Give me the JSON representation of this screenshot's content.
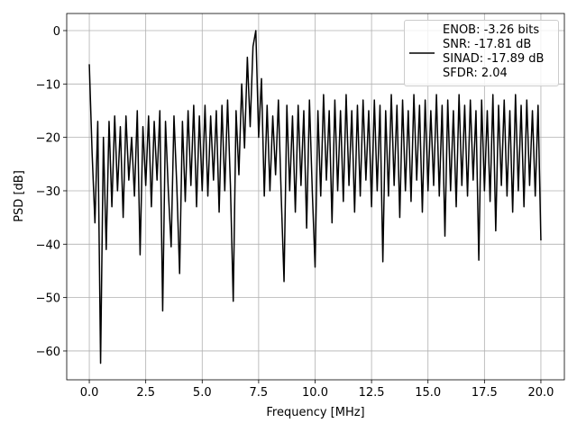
{
  "chart_data": {
    "type": "line",
    "xlabel": "Frequency [MHz]",
    "ylabel": "PSD [dB]",
    "xlim": [
      -1.0,
      21.04
    ],
    "ylim": [
      -65.4,
      3.2
    ],
    "xticks": [
      {
        "value": 0,
        "label": "0.0"
      },
      {
        "value": 2.5,
        "label": "2.5"
      },
      {
        "value": 5,
        "label": "5.0"
      },
      {
        "value": 7.5,
        "label": "7.5"
      },
      {
        "value": 10,
        "label": "10.0"
      },
      {
        "value": 12.5,
        "label": "12.5"
      },
      {
        "value": 15,
        "label": "15.0"
      },
      {
        "value": 17.5,
        "label": "17.5"
      },
      {
        "value": 20,
        "label": "20.0"
      }
    ],
    "yticks": [
      {
        "value": -60,
        "label": "−60"
      },
      {
        "value": -50,
        "label": "−50"
      },
      {
        "value": -40,
        "label": "−40"
      },
      {
        "value": -30,
        "label": "−30"
      },
      {
        "value": -20,
        "label": "−20"
      },
      {
        "value": -10,
        "label": "−10"
      },
      0
    ],
    "grid": true,
    "legend": "upper right",
    "x": [
      0,
      0.125,
      0.25,
      0.375,
      0.5,
      0.625,
      0.75,
      0.875,
      1,
      1.125,
      1.25,
      1.375,
      1.5,
      1.625,
      1.75,
      1.875,
      2,
      2.125,
      2.25,
      2.375,
      2.5,
      2.625,
      2.75,
      2.875,
      3,
      3.125,
      3.25,
      3.375,
      3.5,
      3.625,
      3.75,
      3.875,
      4,
      4.125,
      4.25,
      4.375,
      4.5,
      4.625,
      4.75,
      4.875,
      5,
      5.125,
      5.25,
      5.375,
      5.5,
      5.625,
      5.75,
      5.875,
      6,
      6.125,
      6.25,
      6.375,
      6.5,
      6.625,
      6.75,
      6.875,
      7,
      7.125,
      7.25,
      7.375,
      7.5,
      7.625,
      7.75,
      7.875,
      8,
      8.125,
      8.25,
      8.375,
      8.5,
      8.625,
      8.75,
      8.875,
      9,
      9.125,
      9.25,
      9.375,
      9.5,
      9.625,
      9.75,
      9.875,
      10,
      10.125,
      10.25,
      10.375,
      10.5,
      10.625,
      10.75,
      10.875,
      11,
      11.125,
      11.25,
      11.375,
      11.5,
      11.625,
      11.75,
      11.875,
      12,
      12.125,
      12.25,
      12.375,
      12.5,
      12.625,
      12.75,
      12.875,
      13,
      13.125,
      13.25,
      13.375,
      13.5,
      13.625,
      13.75,
      13.875,
      14,
      14.125,
      14.25,
      14.375,
      14.5,
      14.625,
      14.75,
      14.875,
      15,
      15.125,
      15.25,
      15.375,
      15.5,
      15.625,
      15.75,
      15.875,
      16,
      16.125,
      16.25,
      16.375,
      16.5,
      16.625,
      16.75,
      16.875,
      17,
      17.125,
      17.25,
      17.375,
      17.5,
      17.625,
      17.75,
      17.875,
      18,
      18.125,
      18.25,
      18.375,
      18.5,
      18.625,
      18.75,
      18.875,
      19,
      19.125,
      19.25,
      19.375,
      19.5,
      19.625,
      19.75,
      19.875,
      20
    ],
    "series": [
      {
        "name": "ENOB: -3.26 bits\nSNR: -17.81 dB\nSINAD: -17.89 dB\nSFDR: 2.04",
        "color": "#000000",
        "values": [
          -6.3,
          -23,
          -36,
          -17,
          -62.3,
          -20,
          -41,
          -17,
          -33,
          -16,
          -30,
          -18,
          -35,
          -16,
          -28,
          -20,
          -31,
          -15,
          -42,
          -18,
          -29,
          -16,
          -33,
          -17,
          -28,
          -15,
          -52.5,
          -17,
          -30,
          -40.5,
          -16,
          -29,
          -45.5,
          -17,
          -32,
          -15,
          -29,
          -14,
          -33,
          -16,
          -30,
          -14,
          -31,
          -16,
          -28,
          -15,
          -34,
          -14,
          -30,
          -13,
          -29,
          -50.7,
          -15,
          -27,
          -10,
          -22,
          -5,
          -18,
          -3,
          0,
          -20,
          -9,
          -31,
          -14,
          -30,
          -16,
          -27,
          -13,
          -31,
          -47,
          -14,
          -30,
          -16,
          -34,
          -14,
          -29,
          -15,
          -37,
          -13,
          -30,
          -44.3,
          -15,
          -31,
          -12,
          -28,
          -15,
          -36,
          -13,
          -30,
          -15,
          -32,
          -12,
          -29,
          -15,
          -34,
          -14,
          -31,
          -13,
          -28,
          -15,
          -33,
          -13,
          -30,
          -14,
          -43.3,
          -15,
          -31,
          -12,
          -29,
          -14,
          -35,
          -13,
          -30,
          -15,
          -32,
          -12,
          -28,
          -14,
          -34,
          -13,
          -30,
          -15,
          -29,
          -12,
          -31,
          -14,
          -38.5,
          -13,
          -30,
          -15,
          -33,
          -12,
          -29,
          -14,
          -31,
          -13,
          -28,
          -15,
          -43,
          -13,
          -30,
          -15,
          -32,
          -12,
          -37.5,
          -14,
          -29,
          -13,
          -31,
          -15,
          -34,
          -12,
          -30,
          -14,
          -33,
          -13,
          -29,
          -15,
          -31,
          -14,
          -39.3
        ]
      }
    ]
  }
}
